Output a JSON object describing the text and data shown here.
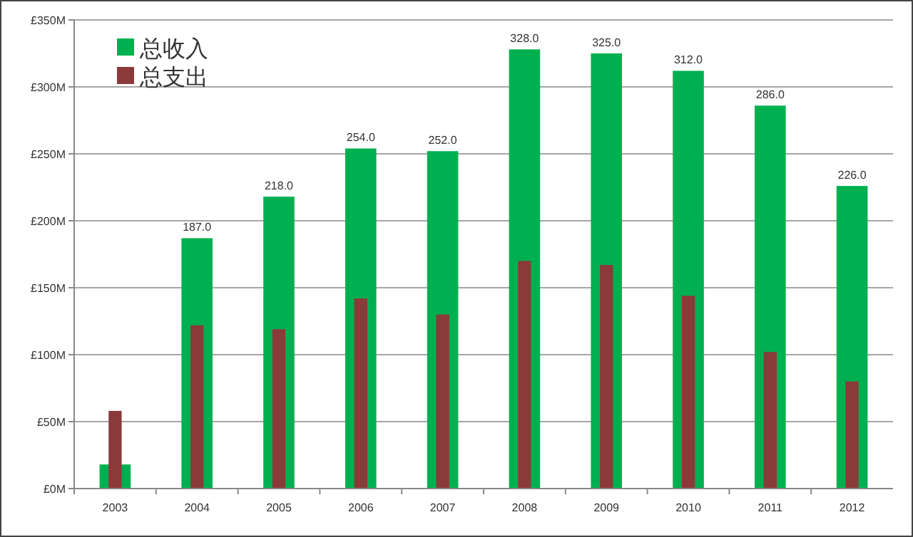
{
  "chart_data": {
    "type": "bar",
    "categories": [
      "2003",
      "2004",
      "2005",
      "2006",
      "2007",
      "2008",
      "2009",
      "2010",
      "2011",
      "2012"
    ],
    "series": [
      {
        "name": "总收入",
        "color": "#00b050",
        "values": [
          18,
          187,
          218,
          254,
          252,
          328,
          325,
          312,
          286,
          226
        ],
        "value_labels": [
          null,
          "187.0",
          "218.0",
          "254.0",
          "252.0",
          "328.0",
          "325.0",
          "312.0",
          "286.0",
          "226.0"
        ]
      },
      {
        "name": "总支出",
        "color": "#8b3a3a",
        "values": [
          58,
          122,
          119,
          142,
          130,
          170,
          167,
          144,
          102,
          80
        ]
      }
    ],
    "ylim": [
      0,
      350
    ],
    "yticks": [
      {
        "value": 0,
        "label": "£0M"
      },
      {
        "value": 50,
        "label": "£50M"
      },
      {
        "value": 100,
        "label": "£100M"
      },
      {
        "value": 150,
        "label": "£150M"
      },
      {
        "value": 200,
        "label": "£200M"
      },
      {
        "value": 250,
        "label": "£250M"
      },
      {
        "value": 300,
        "label": "£300M"
      },
      {
        "value": 350,
        "label": "£350M"
      }
    ],
    "grid": "y",
    "legend": "top left"
  }
}
